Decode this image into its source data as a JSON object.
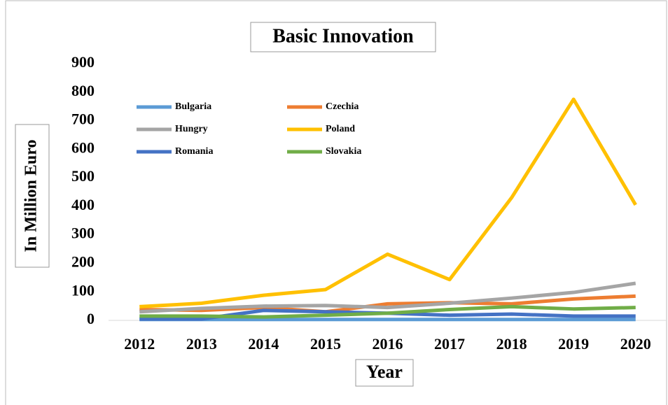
{
  "chart_data": {
    "type": "line",
    "title": "Basic Innovation",
    "x_label": "Year",
    "y_label": "In Million Euro",
    "categories": [
      "2012",
      "2013",
      "2014",
      "2015",
      "2016",
      "2017",
      "2018",
      "2019",
      "2020"
    ],
    "series": [
      {
        "name": "Bulgaria",
        "color": "#5b9bd5",
        "values": [
          3,
          3,
          3,
          3,
          3,
          3,
          3,
          3,
          3
        ]
      },
      {
        "name": "Czechia",
        "color": "#ed7d31",
        "values": [
          38,
          35,
          45,
          30,
          58,
          62,
          58,
          75,
          85
        ]
      },
      {
        "name": "Hungry",
        "color": "#a5a5a5",
        "values": [
          30,
          42,
          50,
          52,
          45,
          60,
          78,
          98,
          130
        ]
      },
      {
        "name": "Poland",
        "color": "#ffc000",
        "values": [
          48,
          60,
          88,
          108,
          232,
          143,
          430,
          775,
          405
        ]
      },
      {
        "name": "Romania",
        "color": "#4472c4",
        "values": [
          5,
          5,
          35,
          30,
          25,
          18,
          22,
          15,
          15
        ]
      },
      {
        "name": "Slovakia",
        "color": "#70ad47",
        "values": [
          15,
          15,
          12,
          18,
          25,
          38,
          48,
          40,
          45
        ]
      }
    ],
    "ylim": [
      0,
      900
    ],
    "yticks": [
      0,
      100,
      200,
      300,
      400,
      500,
      600,
      700,
      800,
      900
    ],
    "grid": false
  }
}
